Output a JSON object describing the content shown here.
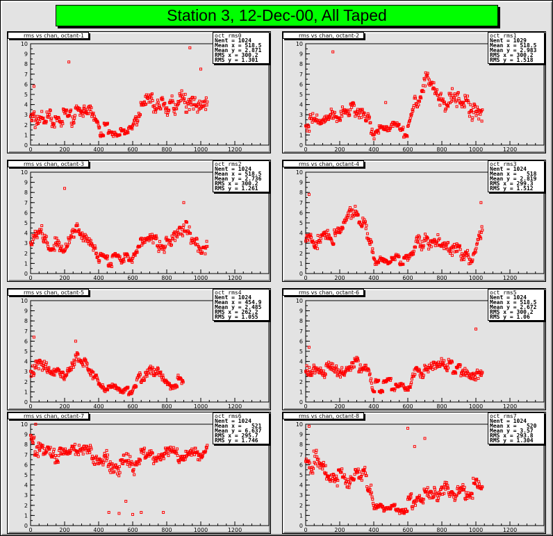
{
  "page_title": "Station 3, 12-Dec-00, All Taped",
  "colors": {
    "frame": "#e3e3e3",
    "title_box": "#00ff00",
    "marker": "#ff0000",
    "axis": "#000000"
  },
  "chart_data": [
    {
      "type": "scatter",
      "title": "rms vs chan, octant-1",
      "stats": {
        "name": "oct_rms0",
        "entries": "Nent = 1024",
        "mean_x": "Mean x = 518.5",
        "mean_y": "Mean y = 2.871",
        "rms_x": "RMS x = 300.2",
        "rms_y": "RMS y = 1.301"
      },
      "xlim": [
        0,
        1400
      ],
      "ylim": [
        0,
        10
      ],
      "x_ticks": [
        0,
        200,
        400,
        600,
        800,
        1000,
        1200
      ],
      "y_ticks": [
        0,
        1,
        2,
        3,
        4,
        5,
        6,
        7,
        8,
        9,
        10
      ],
      "x_max": 1040,
      "segments": [
        [
          0,
          2.6,
          1.5
        ],
        [
          60,
          2.9,
          1.2
        ],
        [
          120,
          2.8,
          1.1
        ],
        [
          180,
          2.6,
          1.0
        ],
        [
          240,
          3.0,
          1.1
        ],
        [
          300,
          3.2,
          1.0
        ],
        [
          370,
          2.9,
          0.9
        ],
        [
          400,
          1.6,
          0.4
        ],
        [
          500,
          1.4,
          0.4
        ],
        [
          600,
          1.5,
          0.3
        ],
        [
          650,
          4.0,
          1.0
        ],
        [
          720,
          4.2,
          1.0
        ],
        [
          800,
          3.6,
          1.1
        ],
        [
          880,
          4.5,
          1.5
        ],
        [
          960,
          4.0,
          1.5
        ],
        [
          1040,
          4.0,
          1.5
        ]
      ],
      "outliers": [
        [
          225,
          8.2
        ],
        [
          936,
          9.6
        ],
        [
          20,
          5.8
        ],
        [
          1000,
          7.5
        ]
      ]
    },
    {
      "type": "scatter",
      "title": "rms vs chan, octant-2",
      "stats": {
        "name": "oct_rms1",
        "entries": "Nent = 1029",
        "mean_x": "Mean x = 518.5",
        "mean_y": "Mean y = 2.983",
        "rms_x": "RMS x = 300.2",
        "rms_y": "RMS y = 1.518"
      },
      "xlim": [
        0,
        1400
      ],
      "ylim": [
        0,
        10
      ],
      "x_ticks": [
        0,
        200,
        400,
        600,
        800,
        1000,
        1200
      ],
      "y_ticks": [
        0,
        1,
        2,
        3,
        4,
        5,
        6,
        7,
        8,
        9,
        10
      ],
      "x_max": 1040,
      "segments": [
        [
          0,
          2.1,
          0.9
        ],
        [
          100,
          2.6,
          1.0
        ],
        [
          200,
          3.0,
          1.1
        ],
        [
          300,
          3.8,
          1.3
        ],
        [
          370,
          2.7,
          1.0
        ],
        [
          400,
          1.4,
          0.5
        ],
        [
          500,
          1.5,
          0.5
        ],
        [
          600,
          1.5,
          0.5
        ],
        [
          650,
          4.5,
          1.2
        ],
        [
          720,
          6.5,
          1.4
        ],
        [
          800,
          4.0,
          1.2
        ],
        [
          880,
          4.5,
          1.5
        ],
        [
          960,
          4.0,
          1.5
        ],
        [
          1040,
          3.0,
          1.1
        ]
      ],
      "outliers": [
        [
          160,
          9.2
        ],
        [
          470,
          4.2
        ]
      ]
    },
    {
      "type": "scatter",
      "title": "rms vs chan, octant-3",
      "stats": {
        "name": "oct_rms2",
        "entries": "Nent = 1024",
        "mean_x": "Mean x = 518.5",
        "mean_y": "Mean y = 2.736",
        "rms_x": "RMS x = 300.2",
        "rms_y": "RMS y = 1.261"
      },
      "xlim": [
        0,
        1400
      ],
      "ylim": [
        0,
        10
      ],
      "x_ticks": [
        0,
        200,
        400,
        600,
        800,
        1000,
        1200
      ],
      "y_ticks": [
        0,
        1,
        2,
        3,
        4,
        5,
        6,
        7,
        8,
        9,
        10
      ],
      "x_max": 1040,
      "segments": [
        [
          0,
          3.0,
          1.2
        ],
        [
          60,
          4.0,
          1.2
        ],
        [
          120,
          2.8,
          1.0
        ],
        [
          200,
          2.2,
          0.8
        ],
        [
          270,
          4.5,
          1.0
        ],
        [
          330,
          3.2,
          1.0
        ],
        [
          380,
          2.6,
          0.8
        ],
        [
          400,
          1.5,
          0.4
        ],
        [
          500,
          1.3,
          0.4
        ],
        [
          600,
          1.5,
          0.4
        ],
        [
          650,
          3.2,
          1.0
        ],
        [
          740,
          3.2,
          1.0
        ],
        [
          820,
          3.0,
          1.2
        ],
        [
          900,
          4.5,
          1.4
        ],
        [
          980,
          3.0,
          1.2
        ],
        [
          1040,
          2.2,
          0.8
        ]
      ],
      "outliers": [
        [
          200,
          8.4
        ],
        [
          900,
          7.0
        ]
      ]
    },
    {
      "type": "scatter",
      "title": "rms vs chan, octant-4",
      "stats": {
        "name": "oct_rms3",
        "entries": "Nent = 1024",
        "mean_x": "Mean x =   518",
        "mean_y": "Mean y = 2.819",
        "rms_x": "RMS x = 299.3",
        "rms_y": "RMS y = 1.512"
      },
      "xlim": [
        0,
        1400
      ],
      "ylim": [
        0,
        10
      ],
      "x_ticks": [
        0,
        200,
        400,
        600,
        800,
        1000,
        1200
      ],
      "y_ticks": [
        0,
        1,
        2,
        3,
        4,
        5,
        6,
        7,
        8,
        9,
        10
      ],
      "x_max": 1040,
      "segments": [
        [
          0,
          3.0,
          1.2
        ],
        [
          100,
          3.5,
          1.0
        ],
        [
          200,
          3.6,
          1.0
        ],
        [
          270,
          6.0,
          1.1
        ],
        [
          330,
          5.0,
          0.8
        ],
        [
          380,
          3.5,
          1.0
        ],
        [
          400,
          1.5,
          0.5
        ],
        [
          500,
          1.4,
          0.4
        ],
        [
          600,
          1.4,
          0.4
        ],
        [
          650,
          3.0,
          1.0
        ],
        [
          740,
          3.4,
          1.0
        ],
        [
          820,
          2.6,
          1.0
        ],
        [
          900,
          2.0,
          0.8
        ],
        [
          980,
          1.8,
          0.7
        ],
        [
          1040,
          4.5,
          1.5
        ]
      ],
      "outliers": [
        [
          20,
          7.8
        ],
        [
          1030,
          7.0
        ]
      ]
    },
    {
      "type": "scatter",
      "title": "rms vs chan, octant-5",
      "stats": {
        "name": "oct_rms4",
        "entries": "Nent = 1024",
        "mean_x": "Mean x = 454.9",
        "mean_y": "Mean y = 2.485",
        "rms_x": "RMS x = 262.2",
        "rms_y": "RMS y = 1.055"
      },
      "xlim": [
        0,
        1400
      ],
      "ylim": [
        0,
        10
      ],
      "x_ticks": [
        0,
        200,
        400,
        600,
        800,
        1000,
        1200
      ],
      "y_ticks": [
        0,
        1,
        2,
        3,
        4,
        5,
        6,
        7,
        8,
        9,
        10
      ],
      "x_max": 900,
      "segments": [
        [
          0,
          3.2,
          1.0
        ],
        [
          60,
          4.0,
          1.1
        ],
        [
          120,
          3.0,
          0.9
        ],
        [
          200,
          3.0,
          0.9
        ],
        [
          270,
          4.5,
          1.0
        ],
        [
          330,
          3.8,
          0.9
        ],
        [
          380,
          2.8,
          0.8
        ],
        [
          400,
          1.5,
          0.4
        ],
        [
          500,
          1.4,
          0.4
        ],
        [
          600,
          1.5,
          0.4
        ],
        [
          650,
          2.4,
          0.7
        ],
        [
          740,
          3.0,
          0.9
        ],
        [
          820,
          2.0,
          0.6
        ],
        [
          900,
          1.8,
          0.5
        ]
      ],
      "outliers": [
        [
          20,
          6.4
        ],
        [
          265,
          6.0
        ]
      ]
    },
    {
      "type": "scatter",
      "title": "rms vs chan, octant-6",
      "stats": {
        "name": "oct_rms5",
        "entries": "Nent = 1024",
        "mean_x": "Mean x = 518.5",
        "mean_y": "Mean y = 2.672",
        "rms_x": "RMS x = 300.2",
        "rms_y": "RMS y = 1.06"
      },
      "xlim": [
        0,
        1400
      ],
      "ylim": [
        0,
        10
      ],
      "x_ticks": [
        0,
        200,
        400,
        600,
        800,
        1000,
        1200
      ],
      "y_ticks": [
        0,
        1,
        2,
        3,
        4,
        5,
        6,
        7,
        8,
        9,
        10
      ],
      "x_max": 1040,
      "segments": [
        [
          0,
          3.0,
          1.0
        ],
        [
          100,
          3.2,
          0.9
        ],
        [
          200,
          3.0,
          0.9
        ],
        [
          300,
          3.8,
          0.9
        ],
        [
          370,
          3.4,
          0.8
        ],
        [
          400,
          1.5,
          0.4
        ],
        [
          500,
          1.6,
          0.4
        ],
        [
          600,
          1.5,
          0.4
        ],
        [
          650,
          3.2,
          0.8
        ],
        [
          740,
          3.0,
          0.8
        ],
        [
          820,
          3.5,
          0.8
        ],
        [
          900,
          3.6,
          0.8
        ],
        [
          980,
          3.0,
          0.9
        ],
        [
          1040,
          3.0,
          0.9
        ]
      ],
      "outliers": [
        [
          1000,
          7.2
        ],
        [
          20,
          5.4
        ]
      ]
    },
    {
      "type": "scatter",
      "title": "rms vs chan, octant-7",
      "stats": {
        "name": "oct_rms6",
        "entries": "Nent = 1024",
        "mean_x": "Mean x =   521",
        "mean_y": "Mean y = 6.637",
        "rms_x": "RMS x = 295.7",
        "rms_y": "RMS y = 1.746"
      },
      "xlim": [
        0,
        1400
      ],
      "ylim": [
        0,
        10
      ],
      "x_ticks": [
        0,
        200,
        400,
        600,
        800,
        1000,
        1200
      ],
      "y_ticks": [
        0,
        1,
        2,
        3,
        4,
        5,
        6,
        7,
        8,
        9,
        10
      ],
      "x_max": 1040,
      "segments": [
        [
          0,
          8.0,
          1.3
        ],
        [
          100,
          7.2,
          1.0
        ],
        [
          200,
          7.0,
          0.9
        ],
        [
          300,
          7.8,
          1.0
        ],
        [
          370,
          7.0,
          1.0
        ],
        [
          400,
          6.5,
          1.0
        ],
        [
          500,
          6.0,
          1.1
        ],
        [
          600,
          6.0,
          1.0
        ],
        [
          650,
          6.8,
          0.9
        ],
        [
          740,
          7.0,
          0.9
        ],
        [
          820,
          7.2,
          0.9
        ],
        [
          900,
          7.0,
          0.8
        ],
        [
          980,
          7.2,
          0.8
        ],
        [
          1040,
          7.4,
          0.8
        ]
      ],
      "outliers": [
        [
          460,
          1.3
        ],
        [
          520,
          1.2
        ],
        [
          600,
          1.1
        ],
        [
          650,
          1.3
        ],
        [
          780,
          1.3
        ],
        [
          560,
          2.4
        ],
        [
          30,
          10.0
        ]
      ]
    },
    {
      "type": "scatter",
      "title": "rms vs chan, octant-8",
      "stats": {
        "name": "oct_rms7",
        "entries": "Nent = 1024",
        "mean_x": "Mean x =   520",
        "mean_y": "Mean y = 3.57",
        "rms_x": "RMS x = 293.8",
        "rms_y": "RMS y = 1.304"
      },
      "xlim": [
        0,
        1400
      ],
      "ylim": [
        0,
        10
      ],
      "x_ticks": [
        0,
        200,
        400,
        600,
        800,
        1000,
        1200
      ],
      "y_ticks": [
        0,
        1,
        2,
        3,
        4,
        5,
        6,
        7,
        8,
        9,
        10
      ],
      "x_max": 1040,
      "segments": [
        [
          0,
          6.5,
          1.5
        ],
        [
          80,
          6.0,
          1.2
        ],
        [
          160,
          5.0,
          1.0
        ],
        [
          240,
          4.5,
          1.0
        ],
        [
          320,
          5.5,
          1.0
        ],
        [
          380,
          4.0,
          1.0
        ],
        [
          400,
          1.7,
          0.5
        ],
        [
          500,
          1.5,
          0.4
        ],
        [
          600,
          2.0,
          0.6
        ],
        [
          650,
          3.0,
          1.0
        ],
        [
          740,
          3.2,
          1.0
        ],
        [
          820,
          3.5,
          1.0
        ],
        [
          900,
          3.0,
          1.0
        ],
        [
          980,
          3.6,
          1.0
        ],
        [
          1040,
          4.5,
          1.2
        ]
      ],
      "outliers": [
        [
          20,
          9.8
        ],
        [
          600,
          9.6
        ],
        [
          640,
          7.8
        ],
        [
          700,
          8.6
        ]
      ]
    }
  ]
}
